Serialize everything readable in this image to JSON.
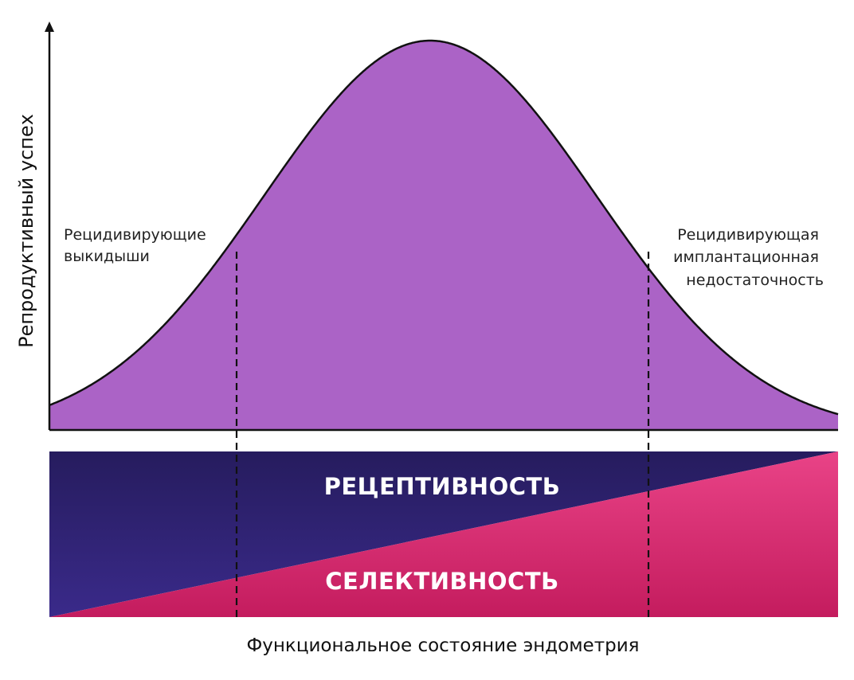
{
  "diagram": {
    "y_axis_label": "Репродуктивный успех",
    "x_axis_label": "Функциональное состояние эндометрия",
    "annotation_left": [
      "Рецидивирующие",
      "выкидыши"
    ],
    "annotation_right": [
      "Рецидивирующая",
      "имплантационная",
      "недостаточность"
    ],
    "band_upper_label": "РЕЦЕПТИВНОСТЬ",
    "band_lower_label": "СЕЛЕКТИВНОСТЬ",
    "colors": {
      "curve_fill": "#ab63c6",
      "curve_stroke": "#111111",
      "receptivity_top": "#261c5e",
      "receptivity_bottom": "#3a2a8a",
      "selectivity_top": "#e94387",
      "selectivity_bottom": "#c41c5e",
      "axis": "#111111"
    }
  }
}
